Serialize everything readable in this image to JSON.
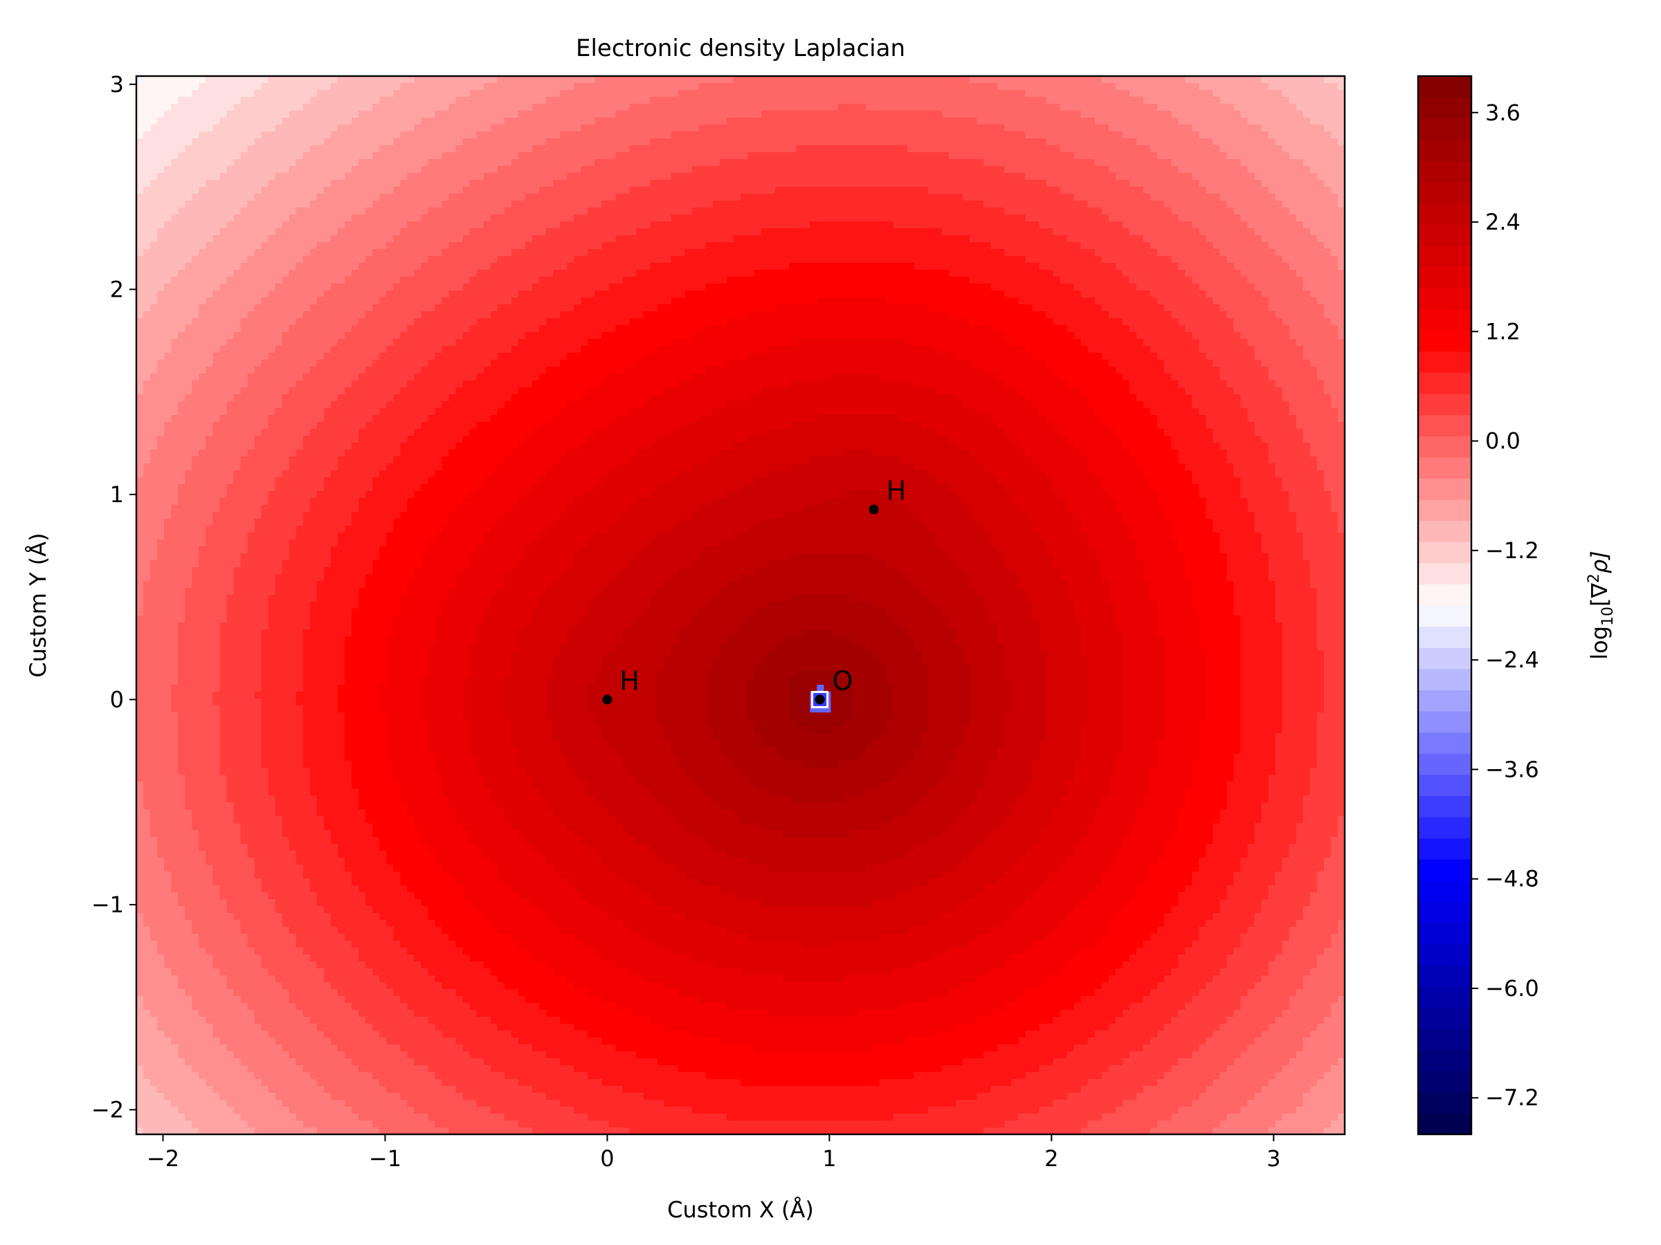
{
  "chart_data": {
    "type": "heatmap",
    "subtype": "filled-contour",
    "title": "Electronic density Laplacian",
    "xlabel": "Custom X (Å)",
    "ylabel": "Custom Y (Å)",
    "xlim": [
      -2.12,
      3.32
    ],
    "ylim": [
      -2.12,
      3.04
    ],
    "x_ticks": [
      -2,
      -1,
      0,
      1,
      2,
      3
    ],
    "x_tick_labels": [
      "−2",
      "−1",
      "0",
      "1",
      "2",
      "3"
    ],
    "y_ticks": [
      -2,
      -1,
      0,
      1,
      2,
      3
    ],
    "y_tick_labels": [
      "−2",
      "−1",
      "0",
      "1",
      "2",
      "3"
    ],
    "grid": false,
    "colorbar": {
      "label": "log10[∇²ρ]",
      "label_base": "log",
      "label_sub": "10",
      "label_body": "[∇",
      "label_sup": "2",
      "label_end": "ρ]",
      "range": [
        -7.6,
        4.0
      ],
      "ticks": [
        3.6,
        2.4,
        1.2,
        0.0,
        -1.2,
        -2.4,
        -3.6,
        -4.8,
        -6.0,
        -7.2
      ],
      "tick_labels": [
        "3.6",
        "2.4",
        "1.2",
        "0.0",
        "−1.2",
        "−2.4",
        "−3.6",
        "−4.8",
        "−6.0",
        "−7.2"
      ],
      "colormap": "seismic",
      "levels": 50
    },
    "atoms": [
      {
        "label": "H",
        "x": 0.0,
        "y": 0.0
      },
      {
        "label": "O",
        "x": 0.957,
        "y": 0.0
      },
      {
        "label": "H",
        "x": 1.2,
        "y": 0.927
      }
    ],
    "colors": {
      "dark_blue": "#00004c",
      "blue": "#0000ff",
      "white": "#ffffff",
      "red": "#ff0000",
      "dark_red": "#800000",
      "marker": "#000000"
    }
  }
}
